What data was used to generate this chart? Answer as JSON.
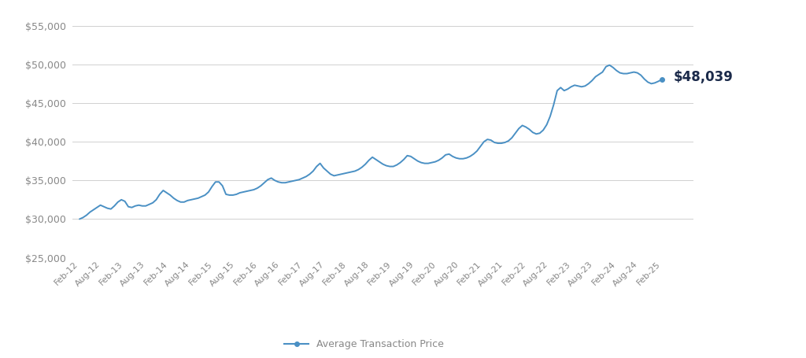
{
  "legend_label": "Average Transaction Price",
  "end_label": "$48,039",
  "line_color": "#4A90C4",
  "end_label_color": "#1B2A4A",
  "background_color": "#FFFFFF",
  "grid_color": "#D0D0D0",
  "tick_label_color": "#888888",
  "ylim": [
    25000,
    56000
  ],
  "yticks": [
    25000,
    30000,
    35000,
    40000,
    45000,
    50000,
    55000
  ],
  "xtick_labels": [
    "Feb-12",
    "Aug-12",
    "Feb-13",
    "Aug-13",
    "Feb-14",
    "Aug-14",
    "Feb-15",
    "Aug-15",
    "Feb-16",
    "Aug-16",
    "Feb-17",
    "Aug-17",
    "Feb-18",
    "Aug-18",
    "Feb-19",
    "Aug-19",
    "Feb-20",
    "Aug-20",
    "Feb-21",
    "Aug-21",
    "Feb-22",
    "Aug-22",
    "Feb-23",
    "Aug-23",
    "Feb-24",
    "Aug-24",
    "Feb-25"
  ],
  "values": [
    30000,
    30200,
    30500,
    30900,
    31200,
    31500,
    31800,
    31600,
    31400,
    31300,
    31700,
    32200,
    32500,
    32300,
    31600,
    31500,
    31700,
    31800,
    31700,
    31700,
    31900,
    32100,
    32500,
    33200,
    33700,
    33400,
    33100,
    32700,
    32400,
    32200,
    32200,
    32400,
    32500,
    32600,
    32700,
    32900,
    33100,
    33500,
    34200,
    34800,
    34800,
    34300,
    33200,
    33100,
    33100,
    33200,
    33400,
    33500,
    33600,
    33700,
    33800,
    34000,
    34300,
    34700,
    35100,
    35300,
    35000,
    34800,
    34700,
    34700,
    34800,
    34900,
    35000,
    35100,
    35300,
    35500,
    35800,
    36200,
    36800,
    37200,
    36600,
    36200,
    35800,
    35600,
    35700,
    35800,
    35900,
    36000,
    36100,
    36200,
    36400,
    36700,
    37100,
    37600,
    38000,
    37700,
    37400,
    37100,
    36900,
    36800,
    36800,
    37000,
    37300,
    37700,
    38200,
    38100,
    37800,
    37500,
    37300,
    37200,
    37200,
    37300,
    37400,
    37600,
    37900,
    38300,
    38400,
    38100,
    37900,
    37800,
    37800,
    37900,
    38100,
    38400,
    38800,
    39400,
    40000,
    40300,
    40200,
    39900,
    39800,
    39800,
    39900,
    40100,
    40500,
    41100,
    41700,
    42100,
    41900,
    41600,
    41200,
    41000,
    41100,
    41500,
    42200,
    43300,
    44800,
    46600,
    47000,
    46600,
    46800,
    47100,
    47300,
    47200,
    47100,
    47200,
    47500,
    47900,
    48400,
    48700,
    49000,
    49700,
    49900,
    49600,
    49200,
    48900,
    48800,
    48800,
    48900,
    49000,
    48900,
    48600,
    48100,
    47700,
    47500,
    47600,
    47800,
    48039
  ]
}
